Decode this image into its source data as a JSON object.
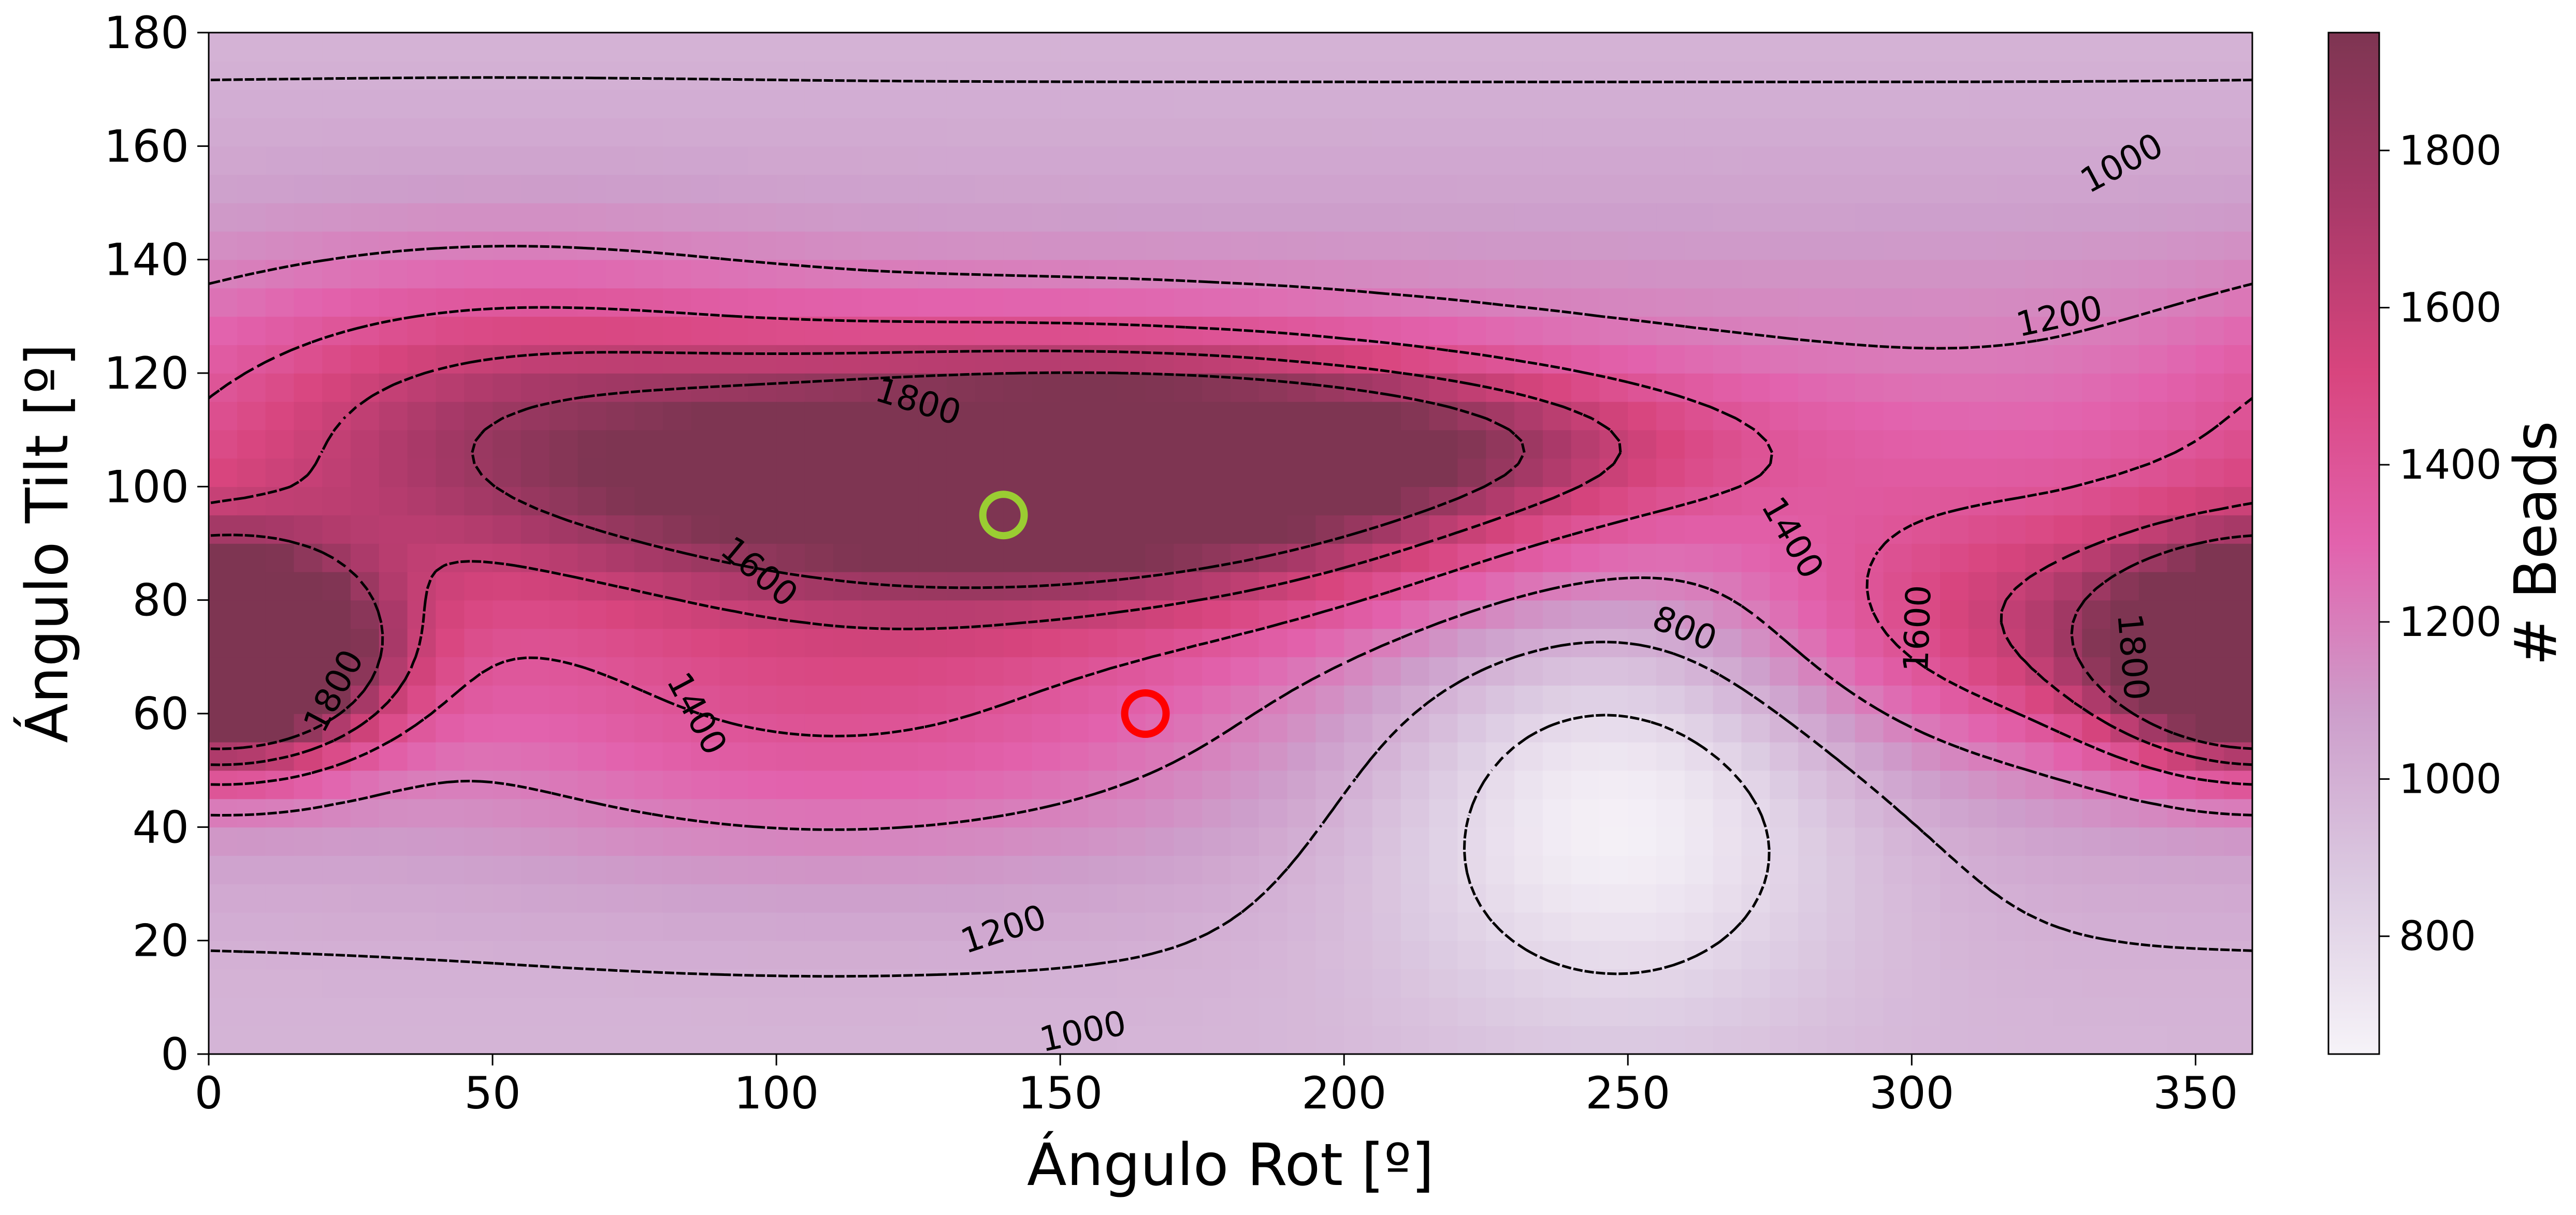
{
  "chart_data": {
    "type": "heatmap",
    "title": "",
    "xlabel": "Ángulo Rot [º]",
    "ylabel": "Ángulo Tilt [º]",
    "xlim": [
      0,
      360
    ],
    "ylim": [
      0,
      180
    ],
    "x_ticks": [
      0,
      50,
      100,
      150,
      200,
      250,
      300,
      350
    ],
    "y_ticks": [
      0,
      20,
      40,
      60,
      80,
      100,
      120,
      140,
      160,
      180
    ],
    "colorbar": {
      "label": "# Beads",
      "range": [
        650,
        1950
      ],
      "ticks": [
        800,
        1000,
        1200,
        1400,
        1600,
        1800
      ],
      "colors": [
        "#f6f3f8",
        "#dccbe2",
        "#cd9ecb",
        "#e262ad",
        "#d8457e",
        "#a83968",
        "#7e3552"
      ]
    },
    "grid": false,
    "contours": {
      "style": "dashed",
      "color": "#000000",
      "levels": [
        800,
        1000,
        1200,
        1400,
        1600,
        1800
      ],
      "labels": [
        {
          "text": "1000",
          "x": 337,
          "y": 157,
          "angle": -28
        },
        {
          "text": "1200",
          "x": 326,
          "y": 130,
          "angle": -12
        },
        {
          "text": "1800",
          "x": 125,
          "y": 115,
          "angle": 17
        },
        {
          "text": "1600",
          "x": 97,
          "y": 85,
          "angle": 40
        },
        {
          "text": "1800",
          "x": 22,
          "y": 64,
          "angle": -62
        },
        {
          "text": "1400",
          "x": 86,
          "y": 60,
          "angle": 62
        },
        {
          "text": "800",
          "x": 260,
          "y": 75,
          "angle": 22
        },
        {
          "text": "1400",
          "x": 279,
          "y": 91,
          "angle": 60
        },
        {
          "text": "1600",
          "x": 301,
          "y": 75,
          "angle": -88
        },
        {
          "text": "1800",
          "x": 339,
          "y": 70,
          "angle": 85
        },
        {
          "text": "1200",
          "x": 140,
          "y": 22,
          "angle": -18
        },
        {
          "text": "1000",
          "x": 154,
          "y": 4,
          "angle": -12
        }
      ]
    },
    "markers": [
      {
        "x": 140,
        "y": 95,
        "color": "#9acd32",
        "shape": "open-circle"
      },
      {
        "x": 165,
        "y": 60,
        "color": "#ff0000",
        "shape": "open-circle"
      }
    ],
    "peaks": [
      {
        "x": 145,
        "y": 102,
        "amp": 1080,
        "sx": 55,
        "sy": 15
      },
      {
        "x": 205,
        "y": 108,
        "amp": 350,
        "sx": 45,
        "sy": 9
      },
      {
        "x": 50,
        "y": 113,
        "amp": 360,
        "sx": 38,
        "sy": 18
      },
      {
        "x": 110,
        "y": 60,
        "amp": 260,
        "sx": 45,
        "sy": 18
      },
      {
        "x": 10,
        "y": 70,
        "amp": 780,
        "sx": 16,
        "sy": 12
      },
      {
        "x": 355,
        "y": 70,
        "amp": 780,
        "sx": 16,
        "sy": 12
      },
      {
        "x": 330,
        "y": 75,
        "amp": 380,
        "sx": 38,
        "sy": 15
      },
      {
        "x": 248,
        "y": 48,
        "amp": -420,
        "sx": 30,
        "sy": 27
      }
    ]
  }
}
